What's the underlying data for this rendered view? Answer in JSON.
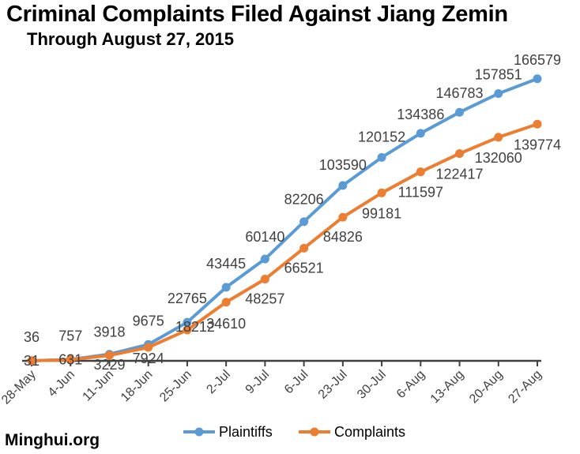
{
  "chart_data": {
    "type": "line",
    "title": "Criminal Complaints Filed Against Jiang Zemin",
    "subtitle": "Through August 27, 2015",
    "source": "Minghui.org",
    "categories": [
      "28-May",
      "4-Jun",
      "11-Jun",
      "18-Jun",
      "25-Jun",
      "2-Jul",
      "9-Jul",
      "6-Jul",
      "23-Jul",
      "30-Jul",
      "6-Aug",
      "13-Aug",
      "20-Aug",
      "27-Aug"
    ],
    "series": [
      {
        "name": "Plaintiffs",
        "color": "#5B9BD5",
        "values": [
          36,
          757,
          3918,
          9675,
          22765,
          43445,
          60140,
          82206,
          103590,
          120152,
          134386,
          146783,
          157851,
          166579
        ]
      },
      {
        "name": "Complaints",
        "color": "#ED7D31",
        "values": [
          31,
          631,
          3229,
          7924,
          18212,
          34610,
          48257,
          66521,
          84826,
          99181,
          111597,
          122417,
          132060,
          139774
        ]
      }
    ],
    "ylim": [
      0,
      180000
    ],
    "legend": "bottom",
    "grid": false
  }
}
